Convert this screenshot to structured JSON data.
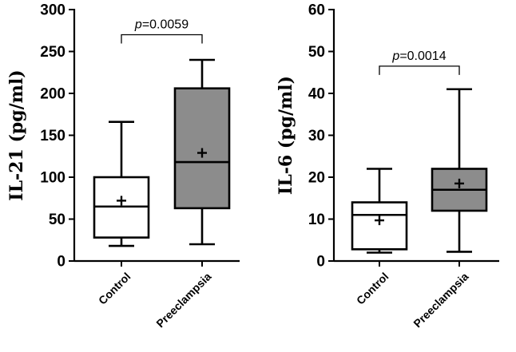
{
  "chart_data": [
    {
      "type": "box",
      "ylabel": "IL-21 (pg/ml)",
      "ylim": [
        0,
        300
      ],
      "yticks": [
        0,
        50,
        100,
        150,
        200,
        250,
        300
      ],
      "categories": [
        "Control",
        "Preeclampsia"
      ],
      "boxes": [
        {
          "name": "Control",
          "min": 18,
          "q1": 28,
          "median": 65,
          "q3": 100,
          "max": 166,
          "mean": 72,
          "fill": "#ffffff"
        },
        {
          "name": "Preeclampsia",
          "min": 20,
          "q1": 63,
          "median": 118,
          "q3": 206,
          "max": 240,
          "mean": 129,
          "fill": "#8c8c8c"
        }
      ],
      "annotation": {
        "p_symbol": "p",
        "p_value": "=0.0059",
        "y": 270
      }
    },
    {
      "type": "box",
      "ylabel": "IL-6 (pg/ml)",
      "ylim": [
        0,
        60
      ],
      "yticks": [
        0,
        10,
        20,
        30,
        40,
        50,
        60
      ],
      "categories": [
        "Control",
        "Preeclampsia"
      ],
      "boxes": [
        {
          "name": "Control",
          "min": 2,
          "q1": 2.8,
          "median": 11,
          "q3": 14,
          "max": 22,
          "mean": 9.7,
          "fill": "#ffffff"
        },
        {
          "name": "Preeclampsia",
          "min": 2.2,
          "q1": 12,
          "median": 17,
          "q3": 22,
          "max": 41,
          "mean": 18.5,
          "fill": "#8c8c8c"
        }
      ],
      "annotation": {
        "p_symbol": "p",
        "p_value": "=0.0014",
        "y": 46.5
      }
    }
  ]
}
